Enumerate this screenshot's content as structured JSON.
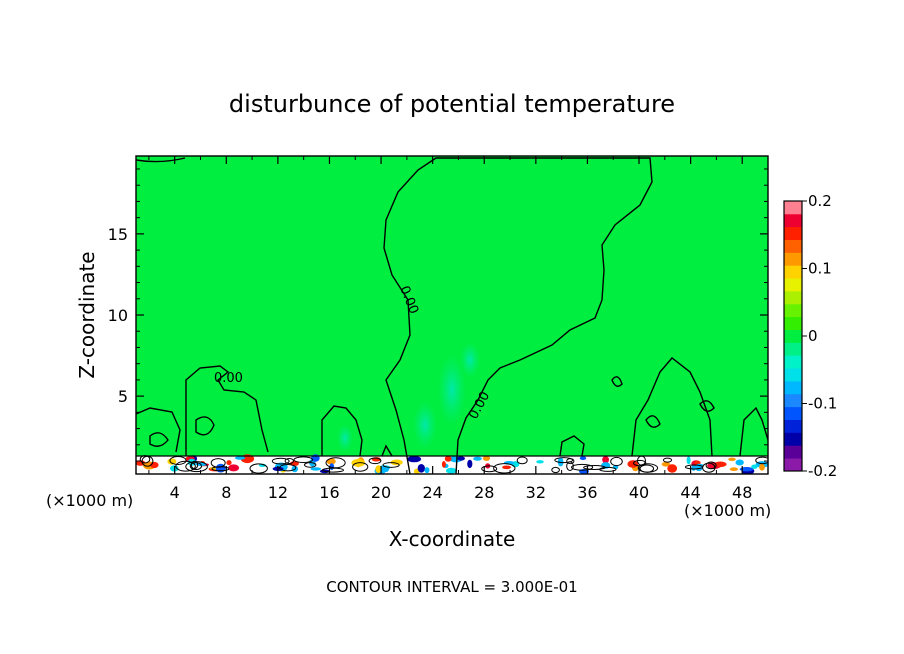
{
  "chart_data": {
    "type": "heatmap",
    "title": "disturbunce of potential temperature",
    "xlabel": "X-coordinate",
    "ylabel": "Z-coordinate",
    "x_unit": "(×1000 m)",
    "x_unit_right": "(×1000 m)",
    "xlim": [
      1,
      50
    ],
    "ylim": [
      0.2,
      19.8
    ],
    "xticks": [
      4,
      8,
      12,
      16,
      20,
      24,
      28,
      32,
      36,
      40,
      44,
      48
    ],
    "yticks": [
      5,
      10,
      15
    ],
    "colorbar": {
      "range": [
        -0.2,
        0.2
      ],
      "labels": [
        "0.2",
        "0.1",
        "0",
        "-0.1",
        "-0.2"
      ],
      "label_values": [
        0.2,
        0.1,
        0,
        -0.1,
        -0.2
      ],
      "colors": [
        "#8c1aa8",
        "#5a0099",
        "#0000a8",
        "#0022d8",
        "#0055ff",
        "#1b88ff",
        "#00b8ff",
        "#00e0e8",
        "#00f2c8",
        "#00f088",
        "#00ee40",
        "#33ee00",
        "#66f200",
        "#aaf000",
        "#e6f200",
        "#ffd200",
        "#ff9900",
        "#ff6000",
        "#ff2000",
        "#ee0030",
        "#ff8090"
      ]
    },
    "contour_labels": [
      "0.00",
      "0.00",
      "0.00"
    ],
    "annotation": "CONTOUR INTERVAL = 3.000E-01"
  }
}
